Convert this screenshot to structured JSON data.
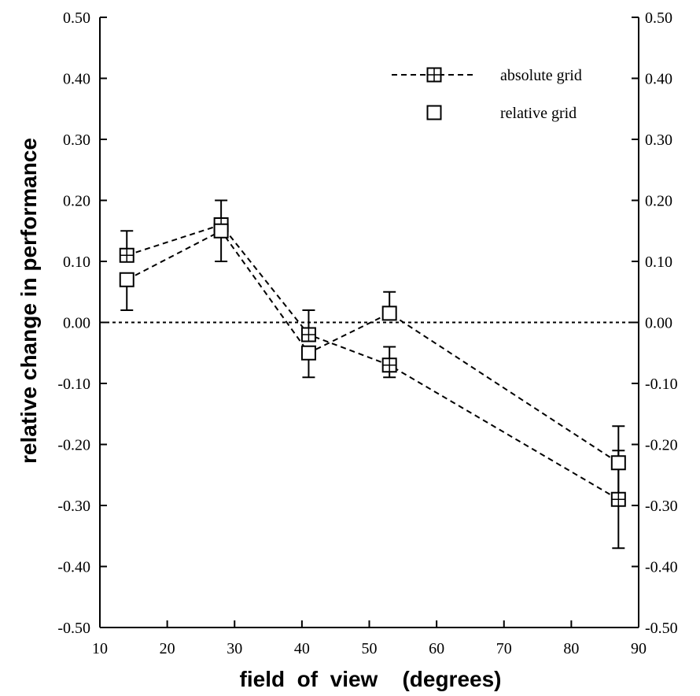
{
  "chart_data": {
    "type": "line",
    "title": "",
    "xlabel": "field  of  view    (degrees)",
    "ylabel": "relative change in performance",
    "xlim": [
      10,
      90
    ],
    "ylim": [
      -0.5,
      0.5
    ],
    "x_ticks": [
      10,
      20,
      30,
      40,
      50,
      60,
      70,
      80,
      90
    ],
    "x_tick_labels": [
      "10",
      "20",
      "30",
      "40",
      "50",
      "60",
      "70",
      "80",
      "90"
    ],
    "y_ticks": [
      0.5,
      0.4,
      0.3,
      0.2,
      0.1,
      0.0,
      -0.1,
      -0.2,
      -0.3,
      -0.4,
      -0.5
    ],
    "y_tick_labels": [
      "0.50",
      "0.40",
      "0.30",
      "0.20",
      "0.10",
      "0.00",
      "-0.10",
      "-0.20",
      "-0.30",
      "-0.40",
      "-0.50"
    ],
    "right_y_ticks": [
      0.5,
      0.4,
      0.3,
      0.2,
      0.1,
      0.0,
      -0.1,
      -0.2,
      -0.3,
      -0.4,
      -0.5
    ],
    "right_y_tick_labels": [
      "0.50",
      "0.40",
      "0.30",
      "0.20",
      "0.10",
      "0.00",
      "-0.10",
      "-0.20",
      "-0.30",
      "-0.40",
      "-0.50"
    ],
    "grid": false,
    "legend_position": "top-right",
    "reference_line": {
      "y": 0.0,
      "style": "dotted"
    },
    "series": [
      {
        "name": "absolute grid",
        "marker": "boxed-plus",
        "line": "dashed",
        "x": [
          14,
          28,
          41,
          53,
          87
        ],
        "y": [
          0.11,
          0.16,
          -0.02,
          -0.07,
          -0.29
        ],
        "err_upper": [
          0.15,
          0.2,
          0.02,
          -0.04,
          -0.21
        ],
        "err_lower": [
          0.11,
          0.16,
          -0.02,
          -0.09,
          -0.29
        ]
      },
      {
        "name": "relative grid",
        "marker": "open-square",
        "line": "dashed",
        "x": [
          14,
          28,
          41,
          53,
          87
        ],
        "y": [
          0.07,
          0.15,
          -0.05,
          0.015,
          -0.23
        ],
        "err_upper": [
          0.07,
          0.15,
          -0.05,
          0.05,
          -0.17
        ],
        "err_lower": [
          0.02,
          0.1,
          -0.09,
          0.015,
          -0.37
        ]
      }
    ]
  }
}
